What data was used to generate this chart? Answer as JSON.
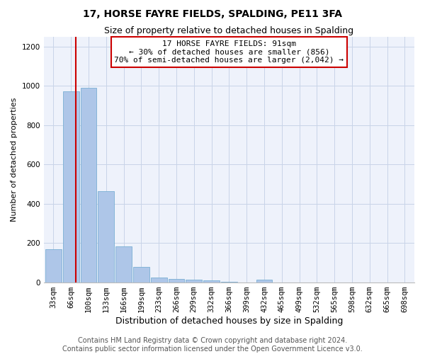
{
  "title": "17, HORSE FAYRE FIELDS, SPALDING, PE11 3FA",
  "subtitle": "Size of property relative to detached houses in Spalding",
  "xlabel": "Distribution of detached houses by size in Spalding",
  "ylabel": "Number of detached properties",
  "bar_color": "#aec6e8",
  "bar_edge_color": "#7aafd4",
  "background_color": "#eef2fb",
  "grid_color": "#c8d4e8",
  "annotation_line_color": "#cc0000",
  "annotation_box_color": "#cc0000",
  "annotation_line1": "17 HORSE FAYRE FIELDS: 91sqm",
  "annotation_line2": "← 30% of detached houses are smaller (856)",
  "annotation_line3": "70% of semi-detached houses are larger (2,042) →",
  "categories": [
    "33sqm",
    "66sqm",
    "100sqm",
    "133sqm",
    "166sqm",
    "199sqm",
    "233sqm",
    "266sqm",
    "299sqm",
    "332sqm",
    "366sqm",
    "399sqm",
    "432sqm",
    "465sqm",
    "499sqm",
    "532sqm",
    "565sqm",
    "598sqm",
    "632sqm",
    "665sqm",
    "698sqm"
  ],
  "values": [
    170,
    970,
    990,
    465,
    185,
    80,
    25,
    20,
    15,
    10,
    5,
    0,
    15,
    0,
    0,
    0,
    0,
    0,
    0,
    0,
    0
  ],
  "ylim": [
    0,
    1250
  ],
  "red_line_x": 1.28,
  "footer_text": "Contains HM Land Registry data © Crown copyright and database right 2024.\nContains public sector information licensed under the Open Government Licence v3.0.",
  "title_fontsize": 10,
  "subtitle_fontsize": 9,
  "tick_fontsize": 7.5,
  "ylabel_fontsize": 8,
  "xlabel_fontsize": 9,
  "footer_fontsize": 7
}
